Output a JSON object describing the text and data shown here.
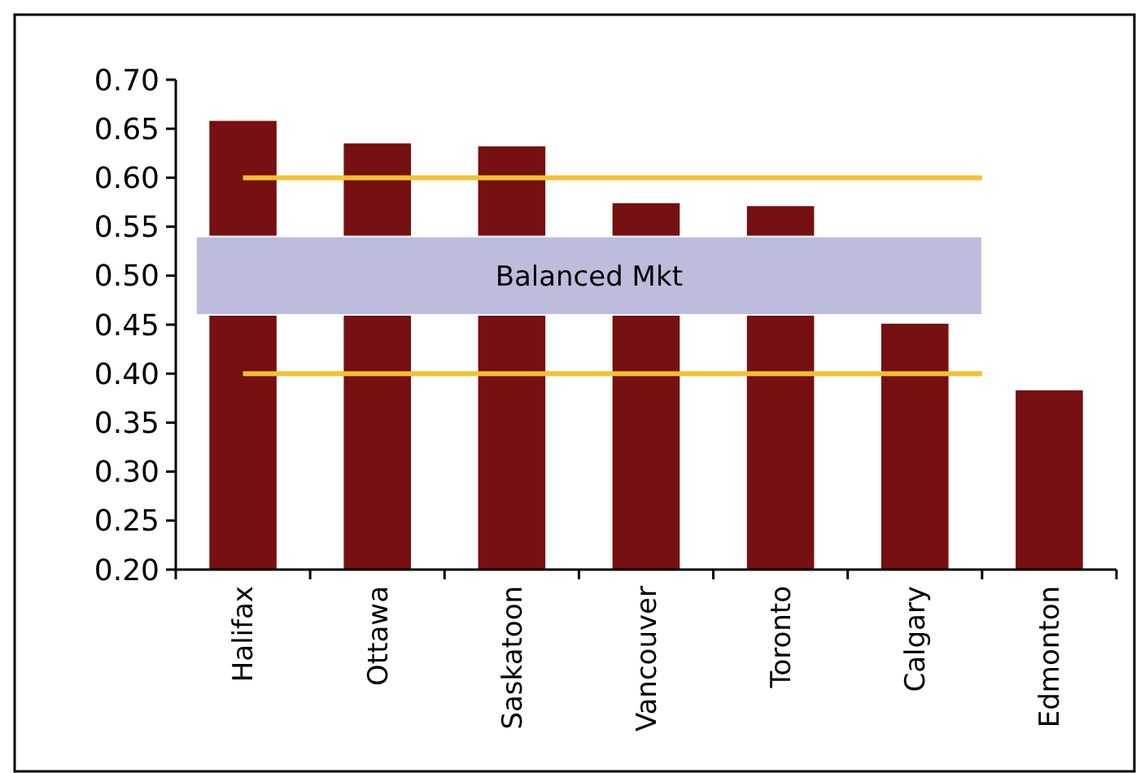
{
  "chart_data": {
    "type": "bar",
    "categories": [
      "Halifax",
      "Ottawa",
      "Saskatoon",
      "Vancouver",
      "Toronto",
      "Calgary",
      "Edmonton"
    ],
    "values": [
      0.658,
      0.635,
      0.632,
      0.574,
      0.571,
      0.451,
      0.383
    ],
    "color": "#761011",
    "ylim": [
      0.2,
      0.7
    ],
    "yticks": [
      {
        "value": 0.2,
        "label": "0.20"
      },
      {
        "value": 0.25,
        "label": "0.25"
      },
      {
        "value": 0.3,
        "label": "0.30"
      },
      {
        "value": 0.35,
        "label": "0.35"
      },
      {
        "value": 0.4,
        "label": "0.40"
      },
      {
        "value": 0.45,
        "label": "0.45"
      },
      {
        "value": 0.5,
        "label": "0.50"
      },
      {
        "value": 0.55,
        "label": "0.55"
      },
      {
        "value": 0.6,
        "label": "0.60"
      },
      {
        "value": 0.65,
        "label": "0.65"
      },
      {
        "value": 0.7,
        "label": "0.70"
      }
    ],
    "ref_lines": [
      {
        "axis": "y",
        "value": 0.6,
        "color": "#f5c12e"
      },
      {
        "axis": "y",
        "value": 0.4,
        "color": "#f5c12e"
      }
    ],
    "bands": [
      {
        "axis": "y",
        "from": 0.46,
        "to": 0.54,
        "label": "Balanced Mkt",
        "color": "#bcbcdc"
      }
    ],
    "grid": false
  }
}
